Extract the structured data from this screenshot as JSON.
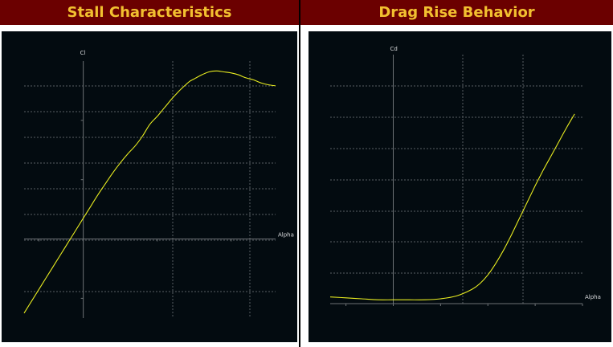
{
  "panels": [
    {
      "header": "Stall Characteristics",
      "chart_data": {
        "type": "line",
        "title": "Stall Characteristics",
        "xlabel": "Alpha",
        "ylabel": "Cl",
        "xlim": [
          -8,
          26
        ],
        "ylim": [
          -0.8,
          1.8
        ],
        "grid": true,
        "x": [
          -8,
          -7,
          -6,
          -5,
          -4,
          -3,
          -2,
          -1,
          0,
          1,
          2,
          3,
          4,
          5,
          6,
          7,
          8,
          9,
          10,
          11,
          12,
          13,
          14,
          14.5,
          15,
          16,
          17,
          18,
          19,
          20,
          21,
          22,
          23,
          24,
          25,
          26
        ],
        "series": [
          {
            "color": "#e8ec20",
            "values": [
              -0.75,
              -0.63,
              -0.51,
              -0.39,
              -0.27,
              -0.15,
              -0.03,
              0.09,
              0.21,
              0.33,
              0.45,
              0.56,
              0.67,
              0.77,
              0.86,
              0.94,
              1.04,
              1.16,
              1.24,
              1.33,
              1.42,
              1.5,
              1.57,
              1.6,
              1.62,
              1.66,
              1.69,
              1.7,
              1.69,
              1.68,
              1.66,
              1.63,
              1.61,
              1.58,
              1.56,
              1.55
            ]
          }
        ]
      }
    },
    {
      "header": "Drag Rise Behavior",
      "chart_data": {
        "type": "line",
        "title": "Drag Rise Behavior",
        "xlabel": "Alpha",
        "ylabel": "Cd",
        "xlim": [
          -8,
          24
        ],
        "ylim": [
          0,
          0.26
        ],
        "grid": true,
        "x": [
          -8,
          -6,
          -4,
          -2,
          0,
          2,
          4,
          6,
          8,
          10,
          11,
          12,
          13,
          14,
          15,
          16,
          17,
          18,
          19,
          20,
          21,
          22,
          23
        ],
        "series": [
          {
            "color": "#e8ec20",
            "values": [
              0.007,
              0.006,
              0.005,
              0.004,
              0.004,
              0.004,
              0.004,
              0.005,
              0.008,
              0.015,
              0.021,
              0.03,
              0.042,
              0.056,
              0.072,
              0.089,
              0.106,
              0.123,
              0.139,
              0.154,
              0.169,
              0.184,
              0.198
            ]
          }
        ]
      }
    }
  ]
}
